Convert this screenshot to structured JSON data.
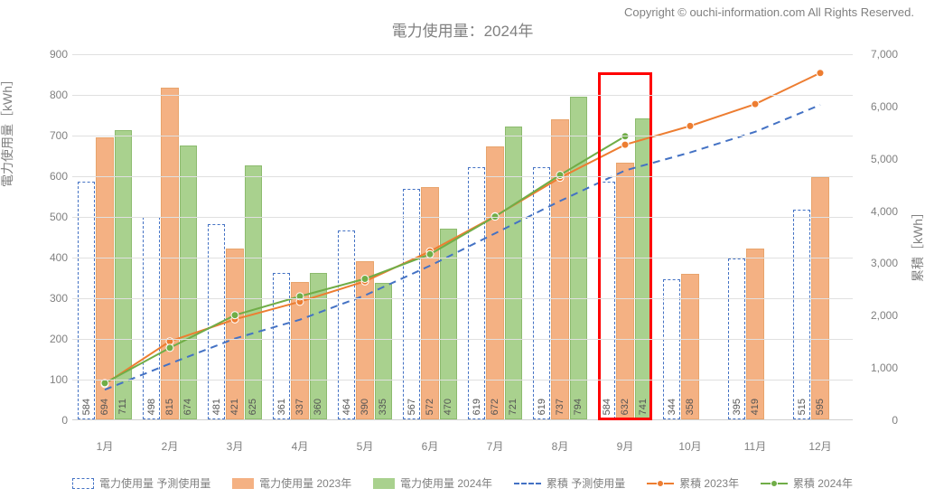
{
  "copyright": "Copyright © ouchi-information.com All Rights Reserved.",
  "title": "電力使用量：2024年",
  "y_label_left": "電力使用量［kWh］",
  "y_label_right": "累積［kWh］",
  "chart": {
    "type": "bar+line",
    "categories": [
      "1月",
      "2月",
      "3月",
      "4月",
      "5月",
      "6月",
      "7月",
      "8月",
      "9月",
      "10月",
      "11月",
      "12月"
    ],
    "left_axis": {
      "min": 0,
      "max": 900,
      "step": 100,
      "ticks": [
        0,
        100,
        200,
        300,
        400,
        500,
        600,
        700,
        800,
        900
      ]
    },
    "right_axis": {
      "min": 0,
      "max": 7000,
      "step": 1000,
      "ticks": [
        0,
        1000,
        2000,
        3000,
        4000,
        5000,
        6000,
        7000
      ]
    },
    "series": {
      "predicted": {
        "label": "電力使用量 予測使用量",
        "type": "bar",
        "style": "dashed-outline",
        "border_color": "#4472c4",
        "fill": "#ffffff",
        "values": [
          584,
          498,
          481,
          361,
          464,
          567,
          619,
          619,
          584,
          344,
          395,
          515
        ]
      },
      "usage_2023": {
        "label": "電力使用量 2023年",
        "type": "bar",
        "color": "#f4b183",
        "values": [
          694,
          815,
          421,
          337,
          390,
          572,
          672,
          737,
          632,
          358,
          419,
          595
        ]
      },
      "usage_2024": {
        "label": "電力使用量 2024年",
        "type": "bar",
        "color": "#a9d18e",
        "values": [
          711,
          674,
          625,
          360,
          335,
          470,
          721,
          794,
          741,
          null,
          null,
          null
        ]
      },
      "cum_predicted": {
        "label": "累積 予測使用量",
        "type": "line",
        "style": "dashed",
        "color": "#4472c4",
        "values": [
          584,
          1082,
          1563,
          1924,
          2388,
          2955,
          3574,
          4193,
          4777,
          5121,
          5516,
          6031
        ]
      },
      "cum_2023": {
        "label": "累積 2023年",
        "type": "line",
        "color": "#ed7d31",
        "marker": "circle",
        "values": [
          694,
          1509,
          1930,
          2267,
          2657,
          3229,
          3901,
          4638,
          5270,
          5628,
          6047,
          6642
        ]
      },
      "cum_2024": {
        "label": "累積 2024年",
        "type": "line",
        "color": "#70ad47",
        "marker": "circle",
        "values": [
          711,
          1385,
          2010,
          2370,
          2705,
          3175,
          3896,
          4690,
          5431,
          null,
          null,
          null
        ]
      }
    },
    "highlight": {
      "month_index": 8
    },
    "grid_color": "#e0e0e0",
    "background": "#ffffff"
  }
}
